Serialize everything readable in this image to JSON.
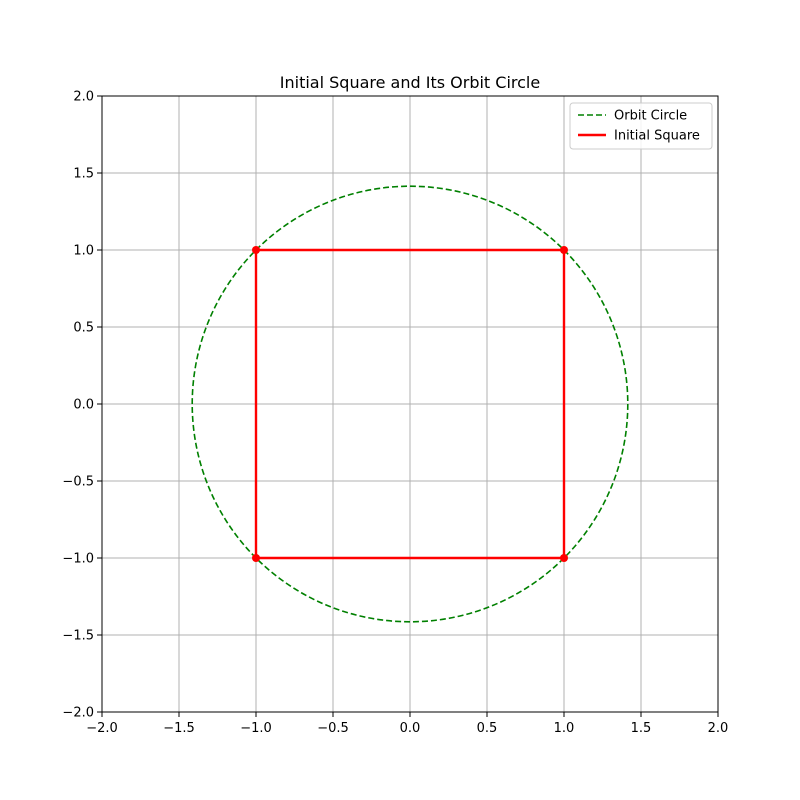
{
  "chart_data": {
    "type": "line",
    "title": "Initial Square and Its Orbit Circle",
    "xlabel": "",
    "ylabel": "",
    "xlim": [
      -2.0,
      2.0
    ],
    "ylim": [
      -2.0,
      2.0
    ],
    "x_ticks": [
      -2.0,
      -1.5,
      -1.0,
      -0.5,
      0.0,
      0.5,
      1.0,
      1.5,
      2.0
    ],
    "y_ticks": [
      -2.0,
      -1.5,
      -1.0,
      -0.5,
      0.0,
      0.5,
      1.0,
      1.5,
      2.0
    ],
    "x_tick_labels": [
      "−2.0",
      "−1.5",
      "−1.0",
      "−0.5",
      "0.0",
      "0.5",
      "1.0",
      "1.5",
      "2.0"
    ],
    "y_tick_labels": [
      "−2.0",
      "−1.5",
      "−1.0",
      "−0.5",
      "0.0",
      "0.5",
      "1.0",
      "1.5",
      "2.0"
    ],
    "grid": true,
    "legend_position": "top-right",
    "series": [
      {
        "name": "Orbit Circle",
        "kind": "circle",
        "center": [
          0,
          0
        ],
        "radius": 1.4142,
        "color": "#008000",
        "style": "dashed"
      },
      {
        "name": "Initial Square",
        "kind": "polyline",
        "points": [
          [
            1,
            1
          ],
          [
            -1,
            1
          ],
          [
            -1,
            -1
          ],
          [
            1,
            -1
          ],
          [
            1,
            1
          ]
        ],
        "color": "#ff0000",
        "style": "solid",
        "markers": [
          [
            1,
            1
          ],
          [
            -1,
            1
          ],
          [
            -1,
            -1
          ],
          [
            1,
            -1
          ]
        ]
      }
    ]
  }
}
